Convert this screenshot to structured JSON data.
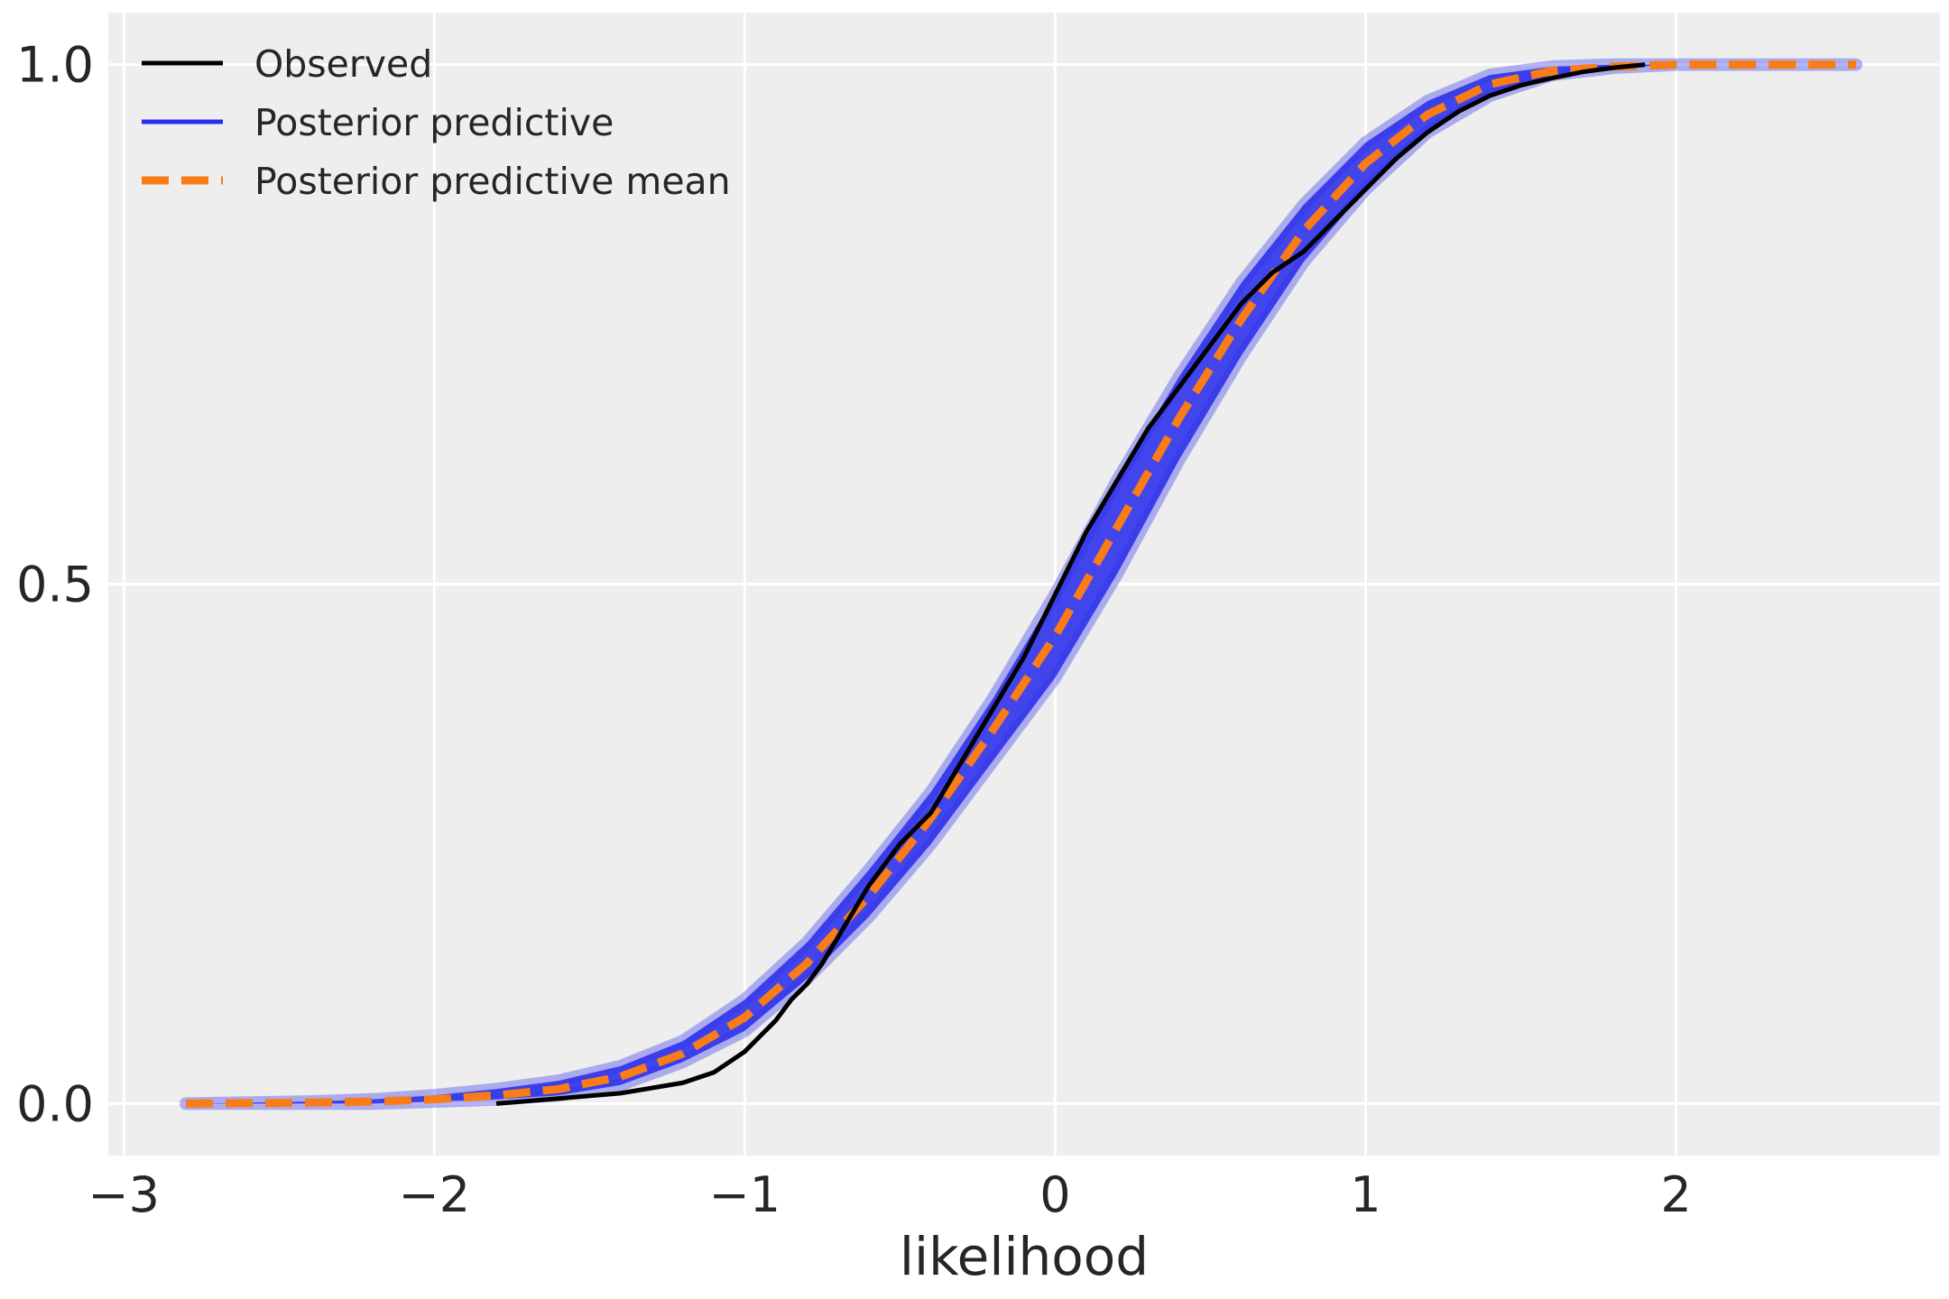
{
  "chart_data": {
    "type": "line",
    "title": "",
    "xlabel": "likelihood",
    "ylabel": "",
    "xlim": [
      -3.05,
      2.85
    ],
    "ylim": [
      -0.05,
      1.05
    ],
    "xticks": [
      -3,
      -2,
      -1,
      0,
      1,
      2
    ],
    "xtick_labels": [
      "−3",
      "−2",
      "−1",
      "0",
      "1",
      "2"
    ],
    "yticks": [
      0.0,
      0.5,
      1.0
    ],
    "ytick_labels": [
      "0.0",
      "0.5",
      "1.0"
    ],
    "grid": true,
    "legend_position": "top-left",
    "background_color": "#eeeeee",
    "grid_color": "#ffffff",
    "series": [
      {
        "name": "Observed",
        "kind": "solid",
        "color": "#000000",
        "x": [
          -1.8,
          -1.6,
          -1.4,
          -1.3,
          -1.2,
          -1.1,
          -1.0,
          -0.95,
          -0.9,
          -0.85,
          -0.8,
          -0.75,
          -0.7,
          -0.65,
          -0.6,
          -0.55,
          -0.5,
          -0.4,
          -0.3,
          -0.2,
          -0.1,
          0.0,
          0.1,
          0.2,
          0.3,
          0.4,
          0.5,
          0.6,
          0.7,
          0.8,
          0.9,
          1.0,
          1.1,
          1.2,
          1.3,
          1.4,
          1.5,
          1.6,
          1.7,
          1.8,
          1.9
        ],
        "y": [
          0.0,
          0.005,
          0.01,
          0.015,
          0.02,
          0.03,
          0.05,
          0.065,
          0.08,
          0.1,
          0.115,
          0.135,
          0.16,
          0.185,
          0.21,
          0.23,
          0.25,
          0.28,
          0.33,
          0.38,
          0.43,
          0.49,
          0.55,
          0.6,
          0.65,
          0.69,
          0.73,
          0.77,
          0.8,
          0.82,
          0.85,
          0.88,
          0.91,
          0.935,
          0.955,
          0.97,
          0.98,
          0.987,
          0.993,
          0.997,
          1.0
        ]
      },
      {
        "name": "Posterior predictive",
        "kind": "band",
        "color": "#2a2eec",
        "x": [
          -2.8,
          -2.4,
          -2.2,
          -2.0,
          -1.8,
          -1.6,
          -1.4,
          -1.2,
          -1.0,
          -0.8,
          -0.6,
          -0.4,
          -0.2,
          0.0,
          0.2,
          0.4,
          0.6,
          0.8,
          1.0,
          1.2,
          1.4,
          1.6,
          1.8,
          2.0,
          2.2,
          2.58
        ],
        "y_low": [
          0.0,
          0.0,
          0.0,
          0.002,
          0.004,
          0.008,
          0.018,
          0.04,
          0.07,
          0.12,
          0.18,
          0.25,
          0.33,
          0.41,
          0.51,
          0.62,
          0.72,
          0.81,
          0.88,
          0.935,
          0.97,
          0.99,
          0.997,
          1.0,
          1.0,
          1.0
        ],
        "y_high": [
          0.0,
          0.002,
          0.004,
          0.008,
          0.014,
          0.022,
          0.036,
          0.06,
          0.1,
          0.155,
          0.225,
          0.3,
          0.39,
          0.49,
          0.6,
          0.7,
          0.79,
          0.865,
          0.925,
          0.965,
          0.99,
          0.998,
          1.0,
          1.0,
          1.0,
          1.0
        ]
      },
      {
        "name": "Posterior predictive mean",
        "kind": "dashed",
        "color": "#fa7c17",
        "x": [
          -2.8,
          -2.4,
          -2.2,
          -2.0,
          -1.8,
          -1.6,
          -1.4,
          -1.2,
          -1.0,
          -0.8,
          -0.6,
          -0.4,
          -0.2,
          0.0,
          0.2,
          0.4,
          0.6,
          0.8,
          1.0,
          1.2,
          1.4,
          1.6,
          1.8,
          2.0,
          2.2,
          2.58
        ],
        "y": [
          0.0,
          0.001,
          0.002,
          0.004,
          0.008,
          0.014,
          0.026,
          0.048,
          0.083,
          0.135,
          0.2,
          0.275,
          0.36,
          0.45,
          0.555,
          0.66,
          0.755,
          0.84,
          0.905,
          0.952,
          0.981,
          0.994,
          0.998,
          1.0,
          1.0,
          1.0
        ]
      }
    ]
  }
}
